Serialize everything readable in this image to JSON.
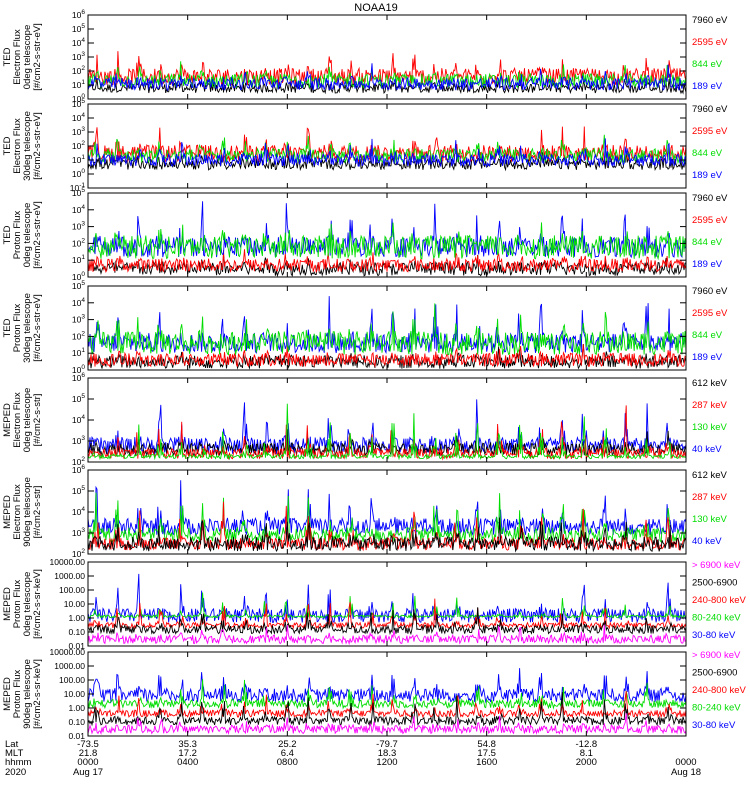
{
  "figure": {
    "title": "NOAA19",
    "x_axis": {
      "rows": [
        {
          "label": "Lat",
          "values": [
            "-73.5",
            "35.3",
            "25.2",
            "-79.7",
            "54.8",
            "-12.8",
            ""
          ]
        },
        {
          "label": "MLT",
          "values": [
            "21.8",
            "17.2",
            "6.4",
            "18.3",
            "17.5",
            "8.1",
            ""
          ]
        },
        {
          "label": "hhmm",
          "values": [
            "0000",
            "0400",
            "0800",
            "1200",
            "1600",
            "2000",
            "0000"
          ]
        },
        {
          "label": "2020",
          "values": [
            "Aug 17",
            "",
            "",
            "",
            "",
            "",
            "Aug 18"
          ]
        }
      ],
      "tick_hours": [
        0,
        4,
        8,
        12,
        16,
        20,
        24
      ]
    }
  },
  "chart_data": [
    {
      "type": "line",
      "scale": "log",
      "ylim": [
        1,
        1000000
      ],
      "ylabel": [
        "TED",
        "Electron Flux",
        "0deg telescope",
        "[#/cm2-s-str-eV]"
      ],
      "yticks": [
        {
          "v": 1,
          "t": "10^0"
        },
        {
          "v": 10,
          "t": "10^1"
        },
        {
          "v": 100,
          "t": "10^2"
        },
        {
          "v": 1000,
          "t": "10^3"
        },
        {
          "v": 10000,
          "t": "10^4"
        },
        {
          "v": 100000,
          "t": "10^5"
        },
        {
          "v": 1000000,
          "t": "10^6"
        }
      ],
      "series": [
        {
          "name": "7960 eV",
          "color": "#000000",
          "base": 6,
          "peak": 30,
          "noise": 0.35
        },
        {
          "name": "2595 eV",
          "color": "#ff0000",
          "base": 40,
          "peak": 2000,
          "noise": 0.6
        },
        {
          "name": "844 eV",
          "color": "#00dd00",
          "base": 20,
          "peak": 300,
          "noise": 0.5
        },
        {
          "name": "189 eV",
          "color": "#0000ff",
          "base": 12,
          "peak": 150,
          "noise": 0.45
        }
      ]
    },
    {
      "type": "line",
      "scale": "log",
      "ylim": [
        0.1,
        100000
      ],
      "ylabel": [
        "TED",
        "Electron Flux",
        "30deg telescope",
        "[#/cm2-s-str-eV]"
      ],
      "yticks": [
        {
          "v": 0.1,
          "t": "10^-1"
        },
        {
          "v": 1,
          "t": "10^0"
        },
        {
          "v": 10,
          "t": "10^1"
        },
        {
          "v": 100,
          "t": "10^2"
        },
        {
          "v": 1000,
          "t": "10^3"
        },
        {
          "v": 10000,
          "t": "10^4"
        },
        {
          "v": 100000,
          "t": "10^5"
        }
      ],
      "series": [
        {
          "name": "7960 eV",
          "color": "#000000",
          "base": 5,
          "peak": 40,
          "noise": 0.4
        },
        {
          "name": "2595 eV",
          "color": "#ff0000",
          "base": 30,
          "peak": 3000,
          "noise": 0.6
        },
        {
          "name": "844 eV",
          "color": "#00dd00",
          "base": 20,
          "peak": 500,
          "noise": 0.5
        },
        {
          "name": "189 eV",
          "color": "#0000ff",
          "base": 10,
          "peak": 200,
          "noise": 0.45
        }
      ]
    },
    {
      "type": "line",
      "scale": "log",
      "ylim": [
        1,
        100000
      ],
      "ylabel": [
        "TED",
        "Proton Flux",
        "0deg telescope",
        "[#/cm2-s-str-eV]"
      ],
      "yticks": [
        {
          "v": 1,
          "t": "10^0"
        },
        {
          "v": 10,
          "t": "10^1"
        },
        {
          "v": 100,
          "t": "10^2"
        },
        {
          "v": 1000,
          "t": "10^3"
        },
        {
          "v": 10000,
          "t": "10^4"
        },
        {
          "v": 100000,
          "t": "10^5"
        }
      ],
      "series": [
        {
          "name": "7960 eV",
          "color": "#000000",
          "base": 3,
          "peak": 20,
          "noise": 0.4
        },
        {
          "name": "2595 eV",
          "color": "#ff0000",
          "base": 5,
          "peak": 40,
          "noise": 0.4
        },
        {
          "name": "189 eV",
          "color": "#0000ff",
          "base": 60,
          "peak": 20000,
          "noise": 0.6
        },
        {
          "name": "844 eV",
          "color": "#00dd00",
          "base": 60,
          "peak": 2000,
          "noise": 0.7
        }
      ]
    },
    {
      "type": "line",
      "scale": "log",
      "ylim": [
        1,
        100000
      ],
      "ylabel": [
        "TED",
        "Proton Flux",
        "30deg telescope",
        "[#/cm2-s-str-eV]"
      ],
      "yticks": [
        {
          "v": 1,
          "t": "10^0"
        },
        {
          "v": 10,
          "t": "10^1"
        },
        {
          "v": 100,
          "t": "10^2"
        },
        {
          "v": 1000,
          "t": "10^3"
        },
        {
          "v": 10000,
          "t": "10^4"
        },
        {
          "v": 100000,
          "t": "10^5"
        }
      ],
      "series": [
        {
          "name": "7960 eV",
          "color": "#000000",
          "base": 3,
          "peak": 15,
          "noise": 0.4
        },
        {
          "name": "2595 eV",
          "color": "#ff0000",
          "base": 4,
          "peak": 30,
          "noise": 0.4
        },
        {
          "name": "189 eV",
          "color": "#0000ff",
          "base": 40,
          "peak": 30000,
          "noise": 0.6
        },
        {
          "name": "844 eV",
          "color": "#00dd00",
          "base": 40,
          "peak": 3000,
          "noise": 0.7
        }
      ]
    },
    {
      "type": "line",
      "scale": "log",
      "ylim": [
        100,
        1000000
      ],
      "ylabel": [
        "MEPED",
        "Electron Flux",
        "0deg telescope",
        "[#/cm2-s-str]"
      ],
      "yticks": [
        {
          "v": 100,
          "t": "10^2"
        },
        {
          "v": 1000,
          "t": "10^3"
        },
        {
          "v": 10000,
          "t": "10^4"
        },
        {
          "v": 100000,
          "t": "10^5"
        },
        {
          "v": 1000000,
          "t": "10^6"
        }
      ],
      "series": [
        {
          "name": "40 keV",
          "color": "#0000ff",
          "base": 600,
          "peak": 150000,
          "noise": 0.4
        },
        {
          "name": "612 keV",
          "color": "#000000",
          "base": 400,
          "peak": 3000,
          "noise": 0.3
        },
        {
          "name": "287 keV",
          "color": "#ff0000",
          "base": 250,
          "peak": 60000,
          "noise": 0.25
        },
        {
          "name": "130 keV",
          "color": "#00dd00",
          "base": 180,
          "peak": 80000,
          "noise": 0.1
        }
      ]
    },
    {
      "type": "line",
      "scale": "log",
      "ylim": [
        100,
        1000000
      ],
      "ylabel": [
        "MEPED",
        "Electron Flux",
        "90deg telescope",
        "[#/cm2-s-str]"
      ],
      "yticks": [
        {
          "v": 100,
          "t": "10^2"
        },
        {
          "v": 1000,
          "t": "10^3"
        },
        {
          "v": 10000,
          "t": "10^4"
        },
        {
          "v": 100000,
          "t": "10^5"
        },
        {
          "v": 1000000,
          "t": "10^6"
        }
      ],
      "series": [
        {
          "name": "40 keV",
          "color": "#0000ff",
          "base": 2000,
          "peak": 400000,
          "noise": 0.4
        },
        {
          "name": "130 keV",
          "color": "#00dd00",
          "base": 800,
          "peak": 120000,
          "noise": 0.35
        },
        {
          "name": "287 keV",
          "color": "#ff0000",
          "base": 300,
          "peak": 80000,
          "noise": 0.3
        },
        {
          "name": "612 keV",
          "color": "#000000",
          "base": 300,
          "peak": 8000,
          "noise": 0.35
        }
      ]
    },
    {
      "type": "line",
      "scale": "log",
      "ylim": [
        0.01,
        10000
      ],
      "ylabel": [
        "MEPED",
        "Proton Flux",
        "0deg telescope",
        "[#/cm2-s-sr-keV]"
      ],
      "yticks": [
        {
          "v": 0.01,
          "t": "0.01"
        },
        {
          "v": 0.1,
          "t": "0.10"
        },
        {
          "v": 1,
          "t": "1.00"
        },
        {
          "v": 10,
          "t": "10.00"
        },
        {
          "v": 100,
          "t": "100.00"
        },
        {
          "v": 1000,
          "t": "1000.00"
        },
        {
          "v": 10000,
          "t": "10000.00"
        }
      ],
      "series": [
        {
          "name": "30-80 keV",
          "color": "#0000ff",
          "base": 1.5,
          "peak": 800,
          "noise": 0.5
        },
        {
          "name": "80-240 keV",
          "color": "#00dd00",
          "base": 1.3,
          "peak": 100,
          "noise": 0.1
        },
        {
          "name": "240-800 keV",
          "color": "#ff0000",
          "base": 0.3,
          "peak": 30,
          "noise": 0.2
        },
        {
          "name": "2500-6900",
          "color": "#000000",
          "base": 0.15,
          "peak": 10,
          "noise": 0.3
        },
        {
          "name": "> 6900 keV",
          "color": "#ff00ff",
          "base": 0.03,
          "peak": 0.3,
          "noise": 0.3
        }
      ]
    },
    {
      "type": "line",
      "scale": "log",
      "ylim": [
        0.01,
        10000
      ],
      "ylabel": [
        "MEPED",
        "Proton Flux",
        "90deg telescope",
        "[#/cm2-s-sr-keV]"
      ],
      "yticks": [
        {
          "v": 0.01,
          "t": "0.01"
        },
        {
          "v": 0.1,
          "t": "0.10"
        },
        {
          "v": 1,
          "t": "1.00"
        },
        {
          "v": 10,
          "t": "10.00"
        },
        {
          "v": 100,
          "t": "100.00"
        },
        {
          "v": 1000,
          "t": "1000.00"
        },
        {
          "v": 10000,
          "t": "10000.00"
        }
      ],
      "series": [
        {
          "name": "30-80 keV",
          "color": "#0000ff",
          "base": 8,
          "peak": 800,
          "noise": 0.5
        },
        {
          "name": "80-240 keV",
          "color": "#00dd00",
          "base": 2,
          "peak": 150,
          "noise": 0.3
        },
        {
          "name": "240-800 keV",
          "color": "#ff0000",
          "base": 0.4,
          "peak": 30,
          "noise": 0.25
        },
        {
          "name": "2500-6900",
          "color": "#000000",
          "base": 0.12,
          "peak": 10,
          "noise": 0.3
        },
        {
          "name": "> 6900 keV",
          "color": "#ff00ff",
          "base": 0.03,
          "peak": 0.5,
          "noise": 0.3
        }
      ]
    }
  ]
}
